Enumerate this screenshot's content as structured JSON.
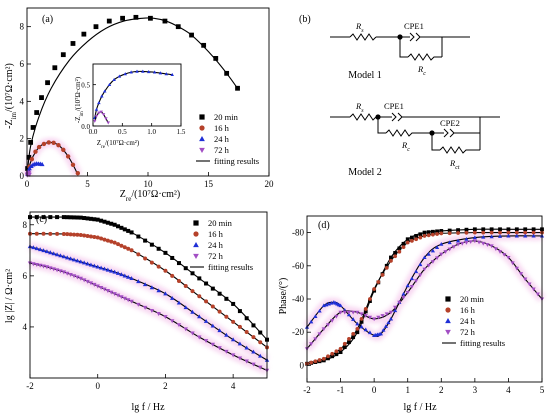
{
  "colors": {
    "s20min": "#000000",
    "s16h": "#b5412a",
    "s24h": "#1f2fd6",
    "s72h": "#a24ec4",
    "fit": "#000000",
    "halo": "#f2b8e6"
  },
  "circuit_panel": {
    "label": "(b)",
    "model1": {
      "title": "Model 1",
      "rs": "R",
      "rs_sub": "s",
      "cpe1": "CPE1",
      "rc": "R",
      "rc_sub": "c"
    },
    "model2": {
      "title": "Model 2",
      "rs": "R",
      "rs_sub": "s",
      "cpe1": "CPE1",
      "cpe2": "CPE2",
      "rc": "R",
      "rc_sub": "c",
      "rct": "R",
      "rct_sub": "ct"
    }
  },
  "chart_data": [
    {
      "type": "scatter",
      "panel": "(a)",
      "xlabel": "Z",
      "xlabel_sub": "re",
      "xlabel_unit": "/(10⁷Ω·cm²)",
      "ylabel": "-Z",
      "ylabel_sub": "im",
      "ylabel_unit": "/(10⁷Ω·cm²)",
      "xlim": [
        0,
        20
      ],
      "ylim": [
        0,
        9
      ],
      "xticks": [
        0,
        5,
        10,
        15,
        20
      ],
      "yticks": [
        0,
        2,
        4,
        6,
        8
      ],
      "legend": [
        "20 min",
        "16 h",
        "24 h",
        "72 h",
        "fitting results"
      ],
      "legend_position": "bottom-right",
      "series": [
        {
          "name": "20 min",
          "marker": "square",
          "x": [
            0.05,
            0.15,
            0.3,
            0.5,
            0.8,
            1.2,
            1.7,
            2.3,
            3.0,
            3.8,
            4.7,
            5.7,
            6.8,
            7.9,
            9.0,
            10.2,
            11.4,
            12.5,
            13.6,
            14.6,
            15.6,
            16.5,
            17.4
          ],
          "y": [
            0.4,
            1.0,
            1.8,
            2.6,
            3.4,
            4.2,
            5.0,
            5.8,
            6.5,
            7.1,
            7.6,
            8.0,
            8.3,
            8.45,
            8.5,
            8.45,
            8.3,
            8.0,
            7.55,
            7.0,
            6.3,
            5.5,
            4.7
          ],
          "fit_x": [
            0.0,
            0.3,
            1.0,
            2.0,
            3.5,
            5.0,
            6.5,
            8.0,
            9.5,
            10.5,
            11.5,
            12.5,
            13.5,
            14.5,
            15.5,
            16.5,
            17.4
          ],
          "fit_y": [
            0.0,
            1.6,
            3.2,
            4.7,
            6.2,
            7.2,
            7.9,
            8.3,
            8.45,
            8.45,
            8.3,
            8.0,
            7.6,
            7.0,
            6.3,
            5.5,
            4.7
          ]
        },
        {
          "name": "16 h",
          "marker": "circle",
          "x": [
            0.05,
            0.2,
            0.4,
            0.7,
            1.0,
            1.4,
            1.8,
            2.2,
            2.6,
            3.0,
            3.4,
            3.8,
            4.2
          ],
          "y": [
            0.1,
            0.5,
            0.9,
            1.3,
            1.55,
            1.72,
            1.8,
            1.78,
            1.65,
            1.4,
            1.05,
            0.6,
            0.15
          ],
          "fit_x": [
            0.0,
            0.2,
            0.5,
            1.0,
            1.5,
            2.0,
            2.5,
            3.0,
            3.5,
            4.0,
            4.2
          ],
          "fit_y": [
            0.0,
            0.55,
            1.05,
            1.55,
            1.75,
            1.8,
            1.7,
            1.4,
            0.95,
            0.35,
            0.05
          ]
        },
        {
          "name": "24 h",
          "marker": "triangle",
          "x": [
            0.05,
            0.1,
            0.2,
            0.35,
            0.5,
            0.65,
            0.8,
            0.95,
            1.1,
            1.25
          ],
          "y": [
            0.1,
            0.25,
            0.4,
            0.52,
            0.6,
            0.64,
            0.66,
            0.65,
            0.64,
            0.62
          ],
          "fit_x": [
            0.0,
            0.1,
            0.25,
            0.45,
            0.65,
            0.85,
            1.05,
            1.25
          ],
          "fit_y": [
            0.0,
            0.25,
            0.44,
            0.58,
            0.64,
            0.66,
            0.65,
            0.62
          ]
        },
        {
          "name": "72 h",
          "marker": "down-triangle",
          "x": [
            0.02,
            0.05,
            0.08,
            0.12,
            0.16,
            0.2
          ],
          "y": [
            0.05,
            0.12,
            0.18,
            0.2,
            0.16,
            0.08
          ],
          "fit_x": [
            0.0,
            0.05,
            0.1,
            0.15,
            0.2
          ],
          "fit_y": [
            0.0,
            0.12,
            0.2,
            0.17,
            0.08
          ]
        }
      ],
      "inset": {
        "xlabel": "Z",
        "xlabel_sub": "re",
        "xlabel_unit": "/(10⁷Ω·cm²)",
        "ylabel": "-Z",
        "ylabel_sub": "im",
        "ylabel_unit": "/(10⁷Ω·cm²)",
        "xlim": [
          0,
          1.5
        ],
        "ylim": [
          0,
          0.75
        ],
        "xticks": [
          "0.0",
          "0.5",
          "1.0",
          "1.5"
        ],
        "yticks": [
          "0.0",
          "0.5"
        ],
        "series": [
          {
            "name": "24 h",
            "marker": "triangle",
            "x": [
              0.03,
              0.06,
              0.1,
              0.15,
              0.2,
              0.28,
              0.36,
              0.45,
              0.55,
              0.65,
              0.75,
              0.85,
              0.95,
              1.05,
              1.15,
              1.25,
              1.35
            ],
            "y": [
              0.1,
              0.2,
              0.28,
              0.36,
              0.42,
              0.5,
              0.56,
              0.6,
              0.63,
              0.65,
              0.66,
              0.66,
              0.655,
              0.65,
              0.64,
              0.63,
              0.62
            ]
          },
          {
            "name": "72 h",
            "marker": "down-triangle",
            "x": [
              0.03,
              0.06,
              0.1,
              0.14,
              0.18,
              0.22,
              0.26
            ],
            "y": [
              0.06,
              0.12,
              0.16,
              0.17,
              0.14,
              0.09,
              0.04
            ]
          }
        ]
      }
    },
    {
      "type": "scatter",
      "panel": "(c)",
      "xlabel": "lg f / Hz",
      "ylabel": "lg |Z| / Ω·cm²",
      "xlim": [
        -2,
        5
      ],
      "ylim": [
        2.0,
        8.5
      ],
      "xticks": [
        -2,
        0,
        2,
        4
      ],
      "yticks": [
        4,
        6,
        8
      ],
      "legend": [
        "20 min",
        "16 h",
        "24 h",
        "72 h",
        "fitting results"
      ],
      "legend_position": "top-right",
      "series": [
        {
          "name": "20 min",
          "marker": "square",
          "log_f": [
            -2.0,
            -1.0,
            -0.5,
            0.0,
            0.5,
            1.0,
            2.0,
            3.0,
            4.0,
            5.0
          ],
          "lgZ": [
            8.3,
            8.3,
            8.28,
            8.2,
            8.0,
            7.7,
            6.9,
            5.9,
            4.9,
            3.5
          ]
        },
        {
          "name": "16 h",
          "marker": "circle",
          "log_f": [
            -2.0,
            -1.0,
            -0.5,
            0.0,
            0.5,
            1.0,
            2.0,
            3.0,
            4.0,
            5.0
          ],
          "lgZ": [
            7.65,
            7.64,
            7.6,
            7.5,
            7.3,
            7.0,
            6.2,
            5.2,
            4.2,
            3.2
          ]
        },
        {
          "name": "24 h",
          "marker": "triangle",
          "log_f": [
            -2.0,
            -1.5,
            -1.0,
            -0.5,
            0.0,
            0.5,
            1.0,
            2.0,
            3.0,
            4.0,
            5.0
          ],
          "lgZ": [
            7.15,
            6.95,
            6.75,
            6.55,
            6.35,
            6.15,
            5.9,
            5.3,
            4.4,
            3.5,
            2.7
          ]
        },
        {
          "name": "72 h",
          "marker": "down-triangle",
          "log_f": [
            -2.0,
            -1.5,
            -1.0,
            -0.5,
            0.0,
            0.5,
            1.0,
            2.0,
            3.0,
            4.0,
            5.0
          ],
          "lgZ": [
            6.5,
            6.35,
            6.15,
            5.9,
            5.6,
            5.3,
            5.0,
            4.4,
            3.6,
            2.9,
            2.3
          ]
        }
      ]
    },
    {
      "type": "scatter",
      "panel": "(d)",
      "xlabel": "lg f / Hz",
      "ylabel": "Phase/(°)",
      "xlim": [
        -2,
        5
      ],
      "ylim": [
        -90,
        10
      ],
      "xticks": [
        -2,
        -1,
        0,
        1,
        2,
        3,
        4,
        5
      ],
      "yticks": [
        -80,
        -60,
        -40,
        -20,
        0
      ],
      "legend": [
        "20 min",
        "16 h",
        "24 h",
        "72 h",
        "fitting results"
      ],
      "legend_position": "bottom-right",
      "series": [
        {
          "name": "20 min",
          "marker": "square",
          "log_f": [
            -2.0,
            -1.5,
            -1.0,
            -0.5,
            0.0,
            0.5,
            1.0,
            1.5,
            2.0,
            3.0,
            4.0,
            5.0
          ],
          "phase": [
            -1,
            -3,
            -8,
            -20,
            -45,
            -65,
            -76,
            -80,
            -81,
            -82,
            -82,
            -82
          ]
        },
        {
          "name": "16 h",
          "marker": "circle",
          "log_f": [
            -2.0,
            -1.5,
            -1.0,
            -0.5,
            0.0,
            0.5,
            1.0,
            1.5,
            2.0,
            3.0,
            4.0,
            5.0
          ],
          "phase": [
            -1,
            -4,
            -10,
            -22,
            -46,
            -63,
            -74,
            -78,
            -79.5,
            -80,
            -80,
            -80
          ]
        },
        {
          "name": "24 h",
          "marker": "triangle",
          "log_f": [
            -2.0,
            -1.5,
            -1.2,
            -1.0,
            -0.5,
            0.0,
            0.2,
            0.5,
            1.0,
            1.5,
            2.0,
            3.0,
            4.0,
            5.0
          ],
          "phase": [
            -23,
            -36,
            -38,
            -36,
            -25,
            -18,
            -19,
            -28,
            -48,
            -65,
            -73,
            -77,
            -78,
            -78
          ]
        },
        {
          "name": "72 h",
          "marker": "down-triangle",
          "log_f": [
            -2.0,
            -1.5,
            -1.0,
            -0.5,
            0.0,
            0.5,
            1.0,
            1.5,
            2.0,
            2.5,
            3.0,
            3.5,
            4.0,
            4.5,
            5.0
          ],
          "phase": [
            -10,
            -22,
            -32,
            -32,
            -28,
            -32,
            -44,
            -58,
            -67,
            -73,
            -75,
            -72,
            -65,
            -52,
            -40
          ]
        }
      ]
    }
  ]
}
